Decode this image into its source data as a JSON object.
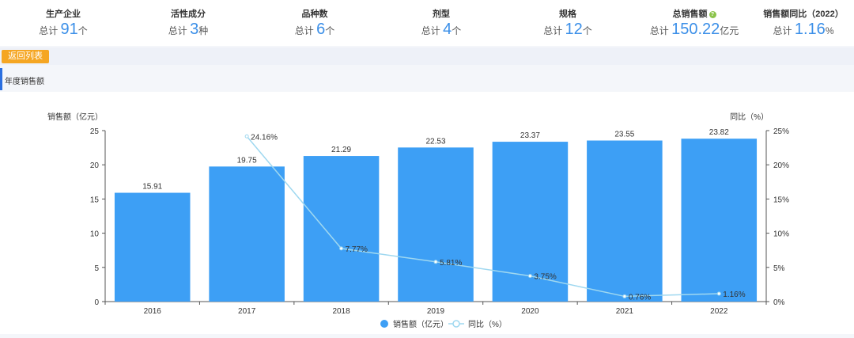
{
  "stats": [
    {
      "label": "生产企业",
      "prefix": "总计",
      "value": "91",
      "unit": "个"
    },
    {
      "label": "活性成分",
      "prefix": "总计",
      "value": "3",
      "unit": "种"
    },
    {
      "label": "品种数",
      "prefix": "总计",
      "value": "6",
      "unit": "个"
    },
    {
      "label": "剂型",
      "prefix": "总计",
      "value": "4",
      "unit": "个"
    },
    {
      "label": "规格",
      "prefix": "总计",
      "value": "12",
      "unit": "个"
    },
    {
      "label": "总销售额",
      "prefix": "总计",
      "value": "150.22",
      "unit": "亿元",
      "help_icon": "?"
    },
    {
      "label": "销售额同比（2022）",
      "prefix": "总计",
      "value": "1.16",
      "unit": "%"
    }
  ],
  "toolbar": {
    "back_label": "返回列表"
  },
  "section": {
    "title": "年度销售额"
  },
  "chart_data": {
    "type": "bar+line",
    "categories": [
      "2016",
      "2017",
      "2018",
      "2019",
      "2020",
      "2021",
      "2022"
    ],
    "series": [
      {
        "name": "销售额（亿元）",
        "type": "bar",
        "axis": "left",
        "values": [
          15.91,
          19.75,
          21.29,
          22.53,
          23.37,
          23.55,
          23.82
        ],
        "labels": [
          "15.91",
          "19.75",
          "21.29",
          "22.53",
          "23.37",
          "23.55",
          "23.82"
        ]
      },
      {
        "name": "同比（%）",
        "type": "line",
        "axis": "right",
        "values": [
          null,
          24.16,
          7.77,
          5.81,
          3.75,
          0.76,
          1.16
        ],
        "labels": [
          "",
          "24.16%",
          "7.77%",
          "5.81%",
          "3.75%",
          "0.76%",
          "1.16%"
        ]
      }
    ],
    "ylabel_left": "销售额（亿元）",
    "ylabel_right": "同比（%）",
    "ylim_left": [
      0,
      25
    ],
    "ylim_right": [
      0,
      25
    ],
    "yticks_left": [
      "0",
      "5",
      "10",
      "15",
      "20",
      "25"
    ],
    "yticks_right": [
      "0%",
      "5%",
      "10%",
      "15%",
      "20%",
      "25%"
    ],
    "legend": [
      "销售额（亿元）",
      "同比（%）"
    ],
    "legend_position": "bottom-center",
    "grid": false,
    "colors": {
      "bar": "#3d9ff5",
      "line": "#9fd8f0",
      "text": "#333333",
      "axis": "#555555"
    }
  }
}
